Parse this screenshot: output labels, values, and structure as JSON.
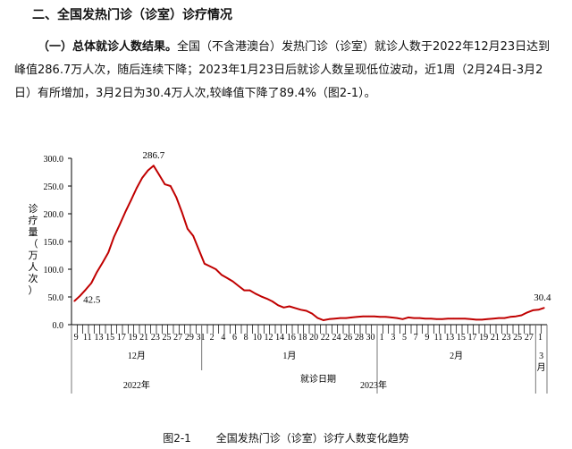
{
  "document": {
    "heading": "二、全国发热门诊（诊室）诊疗情况",
    "para_lead": "（一）总体就诊人数结果。",
    "para_body": "全国（不含港澳台）发热门诊（诊室）就诊人数于2022年12月23日达到峰值286.7万人次，随后连续下降；2023年1月23日后就诊人数呈现低位波动，近1周（2月24日-3月2日）有所增加，3月2日为30.4万人次,较峰值下降了89.4%（图2-1）。",
    "caption_num": "图2-1",
    "caption_text": "全国发热门诊（诊室）诊疗人数变化趋势"
  },
  "chart_data": {
    "type": "line",
    "ylabel": "诊疗量（万人次）",
    "xlabel": "就诊日期",
    "ylim": [
      0,
      300
    ],
    "yticks": [
      "0.0",
      "50.0",
      "100.0",
      "150.0",
      "200.0",
      "250.0",
      "300.0"
    ],
    "line_color": "#c00000",
    "grid": false,
    "months": [
      {
        "label": "12月",
        "days": 23
      },
      {
        "label": "1月",
        "days": 31
      },
      {
        "label": "2月",
        "days": 28
      },
      {
        "label": "3\n月",
        "days": 2
      }
    ],
    "years": [
      {
        "label": "2022年"
      },
      {
        "label": "2023年"
      }
    ],
    "x_labels": [
      "9",
      "",
      "11",
      "",
      "13",
      "",
      "15",
      "",
      "17",
      "",
      "19",
      "",
      "21",
      "",
      "23",
      "",
      "25",
      "",
      "27",
      "",
      "29",
      "",
      "31",
      "",
      "2",
      "",
      "4",
      "",
      "6",
      "",
      "8",
      "",
      "10",
      "",
      "12",
      "",
      "14",
      "",
      "16",
      "",
      "18",
      "",
      "20",
      "",
      "22",
      "",
      "24",
      "",
      "26",
      "",
      "28",
      "",
      "30",
      "",
      "1",
      "",
      "3",
      "",
      "5",
      "",
      "7",
      "",
      "9",
      "",
      "11",
      "",
      "13",
      "",
      "15",
      "",
      "17",
      "",
      "19",
      "",
      "21",
      "",
      "23",
      "",
      "25",
      "",
      "27",
      "",
      "1",
      ""
    ],
    "values": [
      42.5,
      52,
      63,
      75,
      95,
      112,
      130,
      158,
      180,
      203,
      224,
      246,
      265,
      278,
      286.7,
      270,
      253,
      250,
      230,
      203,
      173,
      160,
      135,
      110,
      105,
      100,
      90,
      84,
      78,
      70,
      62,
      62,
      56,
      51,
      47,
      42,
      35,
      31,
      33,
      30,
      27,
      25,
      20,
      12,
      8,
      10,
      11,
      12,
      12,
      13,
      14,
      15,
      15,
      15,
      14,
      14,
      13,
      12,
      10,
      13,
      12,
      12,
      11,
      11,
      10,
      10,
      11,
      11,
      11,
      11,
      10,
      9,
      9,
      10,
      11,
      12,
      12,
      14,
      15,
      17,
      22,
      26,
      27,
      30.4
    ],
    "annotations": [
      {
        "index": 0,
        "label": "42.5"
      },
      {
        "index": 14,
        "label": "286.7"
      },
      {
        "index": 83,
        "label": "30.4"
      }
    ]
  }
}
